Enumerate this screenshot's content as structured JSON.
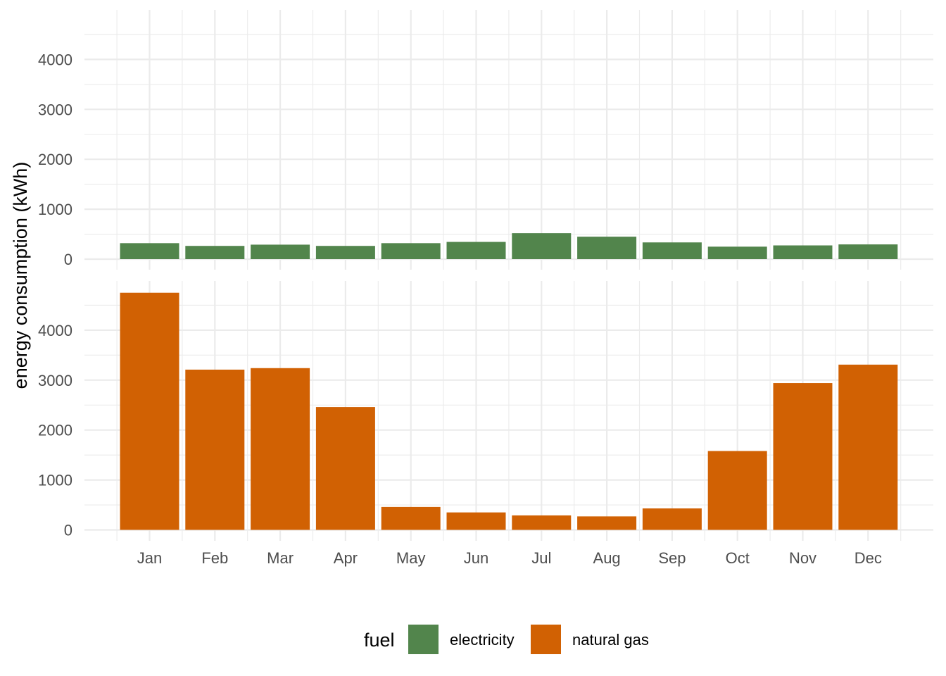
{
  "chart_data": {
    "type": "bar",
    "layout": "faceted-rows",
    "categories": [
      "Jan",
      "Feb",
      "Mar",
      "Apr",
      "May",
      "Jun",
      "Jul",
      "Aug",
      "Sep",
      "Oct",
      "Nov",
      "Dec"
    ],
    "series": [
      {
        "name": "electricity",
        "color": "#52854C",
        "values": [
          320,
          265,
          290,
          265,
          320,
          345,
          520,
          450,
          335,
          250,
          275,
          295
        ]
      },
      {
        "name": "natural gas",
        "color": "#D16103",
        "values": [
          4750,
          3210,
          3240,
          2460,
          460,
          350,
          290,
          270,
          430,
          1580,
          2940,
          3310
        ]
      }
    ],
    "ylabel": "energy consumption (kWh)",
    "xlabel": "",
    "ylim": [
      0,
      4950
    ],
    "yticks": [
      0,
      1000,
      2000,
      3000,
      4000
    ],
    "grid": true,
    "legend": {
      "title": "fuel",
      "position": "bottom"
    }
  }
}
